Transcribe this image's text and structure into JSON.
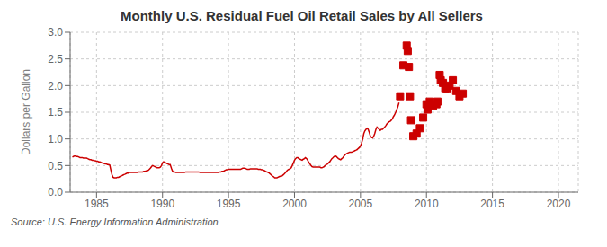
{
  "chart_data": {
    "type": "line",
    "title": "Monthly U.S. Residual Fuel Oil Retail Sales by All Sellers",
    "ylabel": "Dollars per Gallon",
    "annotations": [
      "Source: U.S. Energy Information Administration"
    ],
    "xlim": [
      1983.0,
      2021.5
    ],
    "xticks": [
      1985,
      1990,
      1995,
      2000,
      2005,
      2010,
      2015,
      2020
    ],
    "ylim": [
      0.0,
      3.0
    ],
    "yticks": [
      {
        "value": 0.0,
        "label": "0.0"
      },
      0.5,
      {
        "value": 1.0,
        "label": "1.0"
      },
      1.5,
      {
        "value": 2.0,
        "label": "2.0"
      },
      2.5,
      {
        "value": 3.0,
        "label": "3.0"
      }
    ],
    "grid": true,
    "series": [
      {
        "type": "line",
        "color": "#cc0000",
        "line_style": "solid",
        "x": [
          1983.17,
          1983.25,
          1983.33,
          1983.42,
          1983.5,
          1983.58,
          1983.67,
          1983.75,
          1983.83,
          1983.92,
          1984.0,
          1984.08,
          1984.17,
          1984.25,
          1984.33,
          1984.42,
          1984.5,
          1984.58,
          1984.67,
          1984.75,
          1984.83,
          1984.92,
          1985.0,
          1985.08,
          1985.17,
          1985.25,
          1985.33,
          1985.42,
          1985.5,
          1985.58,
          1985.67,
          1985.75,
          1985.83,
          1985.92,
          1986.0,
          1986.08,
          1986.17,
          1986.25,
          1986.33,
          1986.42,
          1986.5,
          1986.58,
          1986.67,
          1986.75,
          1986.83,
          1986.92,
          1987.0,
          1987.08,
          1987.17,
          1987.25,
          1987.33,
          1987.42,
          1987.5,
          1987.58,
          1987.67,
          1987.75,
          1987.83,
          1987.92,
          1988.0,
          1988.08,
          1988.17,
          1988.25,
          1988.33,
          1988.42,
          1988.5,
          1988.58,
          1988.67,
          1988.75,
          1988.83,
          1988.92,
          1989.0,
          1989.08,
          1989.17,
          1989.25,
          1989.33,
          1989.42,
          1989.5,
          1989.58,
          1989.67,
          1989.75,
          1989.83,
          1989.92,
          1990.0,
          1990.08,
          1990.17,
          1990.25,
          1990.33,
          1990.42,
          1990.5,
          1990.58,
          1990.67,
          1990.75,
          1990.83,
          1990.92,
          1991.0,
          1991.08,
          1991.17,
          1991.25,
          1991.33,
          1991.42,
          1991.5,
          1991.58,
          1991.67,
          1991.75,
          1991.83,
          1991.92,
          1992.0,
          1992.08,
          1992.17,
          1992.25,
          1992.33,
          1992.42,
          1992.5,
          1992.58,
          1992.67,
          1992.75,
          1992.83,
          1992.92,
          1993.0,
          1993.08,
          1993.17,
          1993.25,
          1993.33,
          1993.42,
          1993.5,
          1993.58,
          1993.67,
          1993.75,
          1993.83,
          1993.92,
          1994.0,
          1994.08,
          1994.17,
          1994.25,
          1994.33,
          1994.42,
          1994.5,
          1994.58,
          1994.67,
          1994.75,
          1994.83,
          1994.92,
          1995.0,
          1995.08,
          1995.17,
          1995.25,
          1995.33,
          1995.42,
          1995.5,
          1995.58,
          1995.67,
          1995.75,
          1995.83,
          1995.92,
          1996.0,
          1996.08,
          1996.17,
          1996.25,
          1996.33,
          1996.42,
          1996.5,
          1996.58,
          1996.67,
          1996.75,
          1996.83,
          1996.92,
          1997.0,
          1997.08,
          1997.17,
          1997.25,
          1997.33,
          1997.42,
          1997.5,
          1997.58,
          1997.67,
          1997.75,
          1997.83,
          1997.92,
          1998.0,
          1998.08,
          1998.17,
          1998.25,
          1998.33,
          1998.42,
          1998.5,
          1998.58,
          1998.67,
          1998.75,
          1998.83,
          1998.92,
          1999.0,
          1999.08,
          1999.17,
          1999.25,
          1999.33,
          1999.42,
          1999.5,
          1999.58,
          1999.67,
          1999.75,
          1999.83,
          1999.92,
          2000.0,
          2000.08,
          2000.17,
          2000.25,
          2000.33,
          2000.42,
          2000.5,
          2000.58,
          2000.67,
          2000.75,
          2000.83,
          2000.92,
          2001.0,
          2001.08,
          2001.17,
          2001.25,
          2001.33,
          2001.42,
          2001.5,
          2001.58,
          2001.67,
          2001.75,
          2001.83,
          2001.92,
          2002.0,
          2002.08,
          2002.17,
          2002.25,
          2002.33,
          2002.42,
          2002.5,
          2002.58,
          2002.67,
          2002.75,
          2002.83,
          2002.92,
          2003.0,
          2003.08,
          2003.17,
          2003.25,
          2003.33,
          2003.42,
          2003.5,
          2003.58,
          2003.67,
          2003.75,
          2003.83,
          2003.92,
          2004.0,
          2004.08,
          2004.17,
          2004.25,
          2004.33,
          2004.42,
          2004.5,
          2004.58,
          2004.67,
          2004.75,
          2004.83,
          2004.92,
          2005.0,
          2005.08,
          2005.17,
          2005.25,
          2005.33,
          2005.42,
          2005.5,
          2005.58,
          2005.67,
          2005.75,
          2005.83,
          2005.92,
          2006.0,
          2006.08,
          2006.17,
          2006.25,
          2006.33,
          2006.42,
          2006.5,
          2006.58,
          2006.67,
          2006.75,
          2006.83,
          2006.92,
          2007.0,
          2007.08,
          2007.17,
          2007.25,
          2007.33,
          2007.42,
          2007.5,
          2007.58,
          2007.67,
          2007.75,
          2007.83,
          2007.92
        ],
        "values": [
          0.66,
          0.67,
          0.68,
          0.68,
          0.67,
          0.67,
          0.66,
          0.65,
          0.65,
          0.65,
          0.64,
          0.64,
          0.64,
          0.64,
          0.63,
          0.62,
          0.61,
          0.61,
          0.6,
          0.6,
          0.59,
          0.59,
          0.58,
          0.58,
          0.57,
          0.57,
          0.56,
          0.55,
          0.54,
          0.54,
          0.53,
          0.53,
          0.52,
          0.52,
          0.51,
          0.42,
          0.33,
          0.28,
          0.27,
          0.27,
          0.27,
          0.28,
          0.28,
          0.29,
          0.3,
          0.31,
          0.32,
          0.33,
          0.34,
          0.35,
          0.36,
          0.36,
          0.37,
          0.37,
          0.37,
          0.37,
          0.37,
          0.37,
          0.37,
          0.37,
          0.38,
          0.38,
          0.38,
          0.38,
          0.38,
          0.39,
          0.39,
          0.4,
          0.4,
          0.41,
          0.43,
          0.45,
          0.48,
          0.5,
          0.49,
          0.48,
          0.47,
          0.46,
          0.46,
          0.46,
          0.47,
          0.5,
          0.55,
          0.57,
          0.56,
          0.55,
          0.54,
          0.53,
          0.52,
          0.52,
          0.45,
          0.4,
          0.38,
          0.38,
          0.37,
          0.37,
          0.37,
          0.37,
          0.37,
          0.37,
          0.37,
          0.37,
          0.37,
          0.38,
          0.38,
          0.38,
          0.38,
          0.38,
          0.38,
          0.38,
          0.38,
          0.38,
          0.38,
          0.38,
          0.38,
          0.38,
          0.37,
          0.37,
          0.37,
          0.37,
          0.37,
          0.37,
          0.37,
          0.37,
          0.37,
          0.37,
          0.37,
          0.37,
          0.37,
          0.37,
          0.37,
          0.37,
          0.37,
          0.37,
          0.38,
          0.38,
          0.39,
          0.39,
          0.4,
          0.41,
          0.42,
          0.42,
          0.43,
          0.43,
          0.43,
          0.43,
          0.43,
          0.43,
          0.43,
          0.43,
          0.43,
          0.43,
          0.43,
          0.43,
          0.44,
          0.45,
          0.45,
          0.45,
          0.44,
          0.43,
          0.43,
          0.43,
          0.44,
          0.44,
          0.44,
          0.44,
          0.44,
          0.44,
          0.44,
          0.43,
          0.43,
          0.43,
          0.42,
          0.42,
          0.41,
          0.4,
          0.39,
          0.38,
          0.37,
          0.36,
          0.34,
          0.32,
          0.3,
          0.29,
          0.27,
          0.27,
          0.27,
          0.28,
          0.29,
          0.3,
          0.3,
          0.31,
          0.33,
          0.35,
          0.37,
          0.4,
          0.42,
          0.43,
          0.44,
          0.46,
          0.5,
          0.55,
          0.6,
          0.63,
          0.65,
          0.65,
          0.63,
          0.62,
          0.61,
          0.6,
          0.62,
          0.63,
          0.65,
          0.63,
          0.6,
          0.56,
          0.53,
          0.5,
          0.48,
          0.47,
          0.47,
          0.47,
          0.47,
          0.47,
          0.47,
          0.47,
          0.46,
          0.46,
          0.47,
          0.48,
          0.5,
          0.52,
          0.53,
          0.55,
          0.57,
          0.6,
          0.63,
          0.65,
          0.67,
          0.68,
          0.67,
          0.65,
          0.63,
          0.62,
          0.61,
          0.63,
          0.65,
          0.68,
          0.7,
          0.72,
          0.73,
          0.74,
          0.75,
          0.75,
          0.75,
          0.76,
          0.77,
          0.78,
          0.79,
          0.8,
          0.82,
          0.84,
          0.87,
          0.92,
          1.0,
          1.1,
          1.15,
          1.18,
          1.2,
          1.18,
          1.12,
          1.05,
          1.03,
          1.02,
          1.05,
          1.1,
          1.18,
          1.22,
          1.2,
          1.18,
          1.16,
          1.18,
          1.18,
          1.2,
          1.22,
          1.25,
          1.28,
          1.3,
          1.32,
          1.33,
          1.35,
          1.38,
          1.42,
          1.45,
          1.5,
          1.55,
          1.6,
          1.68
        ]
      },
      {
        "type": "scatter",
        "color": "#cc0000",
        "marker": "square",
        "x": [
          2008.0,
          2008.25,
          2008.5,
          2008.58,
          2008.67,
          2008.75,
          2008.83,
          2009.0,
          2009.25,
          2009.5,
          2009.75,
          2010.0,
          2010.08,
          2010.25,
          2010.5,
          2010.75,
          2010.83,
          2011.0,
          2011.08,
          2011.25,
          2011.42,
          2011.58,
          2011.75,
          2012.0,
          2012.25,
          2012.5,
          2012.75
        ],
        "values": [
          1.8,
          2.38,
          2.75,
          2.65,
          2.35,
          1.8,
          1.35,
          1.05,
          1.1,
          1.2,
          1.4,
          1.65,
          1.55,
          1.7,
          1.62,
          1.65,
          1.7,
          2.2,
          2.1,
          2.05,
          1.95,
          1.95,
          2.0,
          2.1,
          1.9,
          1.8,
          1.85
        ]
      }
    ]
  }
}
